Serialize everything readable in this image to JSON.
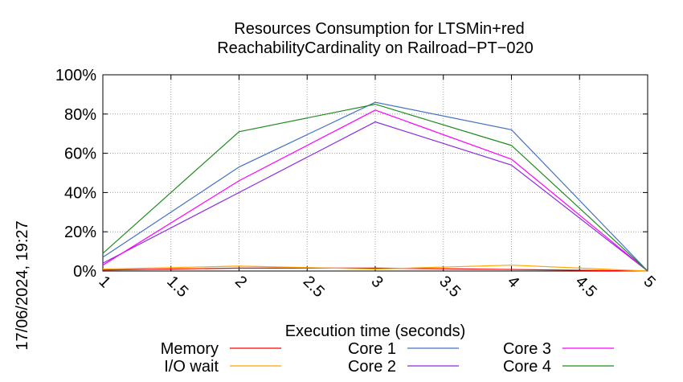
{
  "chart_data": {
    "type": "line",
    "title_lines": [
      "Resources Consumption for LTSMin+red",
      "ReachabilityCardinality on Railroad−PT−020"
    ],
    "xlabel": "Execution time (seconds)",
    "ylabel": "",
    "timestamp": "17/06/2024, 19:27",
    "xlim": [
      1,
      5
    ],
    "ylim": [
      0,
      100
    ],
    "x_ticks": [
      1,
      1.5,
      2,
      2.5,
      3,
      3.5,
      4,
      4.5,
      5
    ],
    "x_tick_labels": [
      "1",
      "1.5",
      "2",
      "2.5",
      "3",
      "3.5",
      "4",
      "4.5",
      "5"
    ],
    "y_ticks": [
      0,
      20,
      40,
      60,
      80,
      100
    ],
    "y_tick_labels": [
      "0%",
      "20%",
      "40%",
      "60%",
      "80%",
      "100%"
    ],
    "grid": true,
    "legend_position": "bottom",
    "x": [
      1,
      2,
      3,
      4,
      5
    ],
    "series": [
      {
        "name": "Memory",
        "color": "#ff0000",
        "values": [
          0.5,
          1.5,
          1.5,
          0.8,
          0
        ]
      },
      {
        "name": "I/O wait",
        "color": "#ffa500",
        "values": [
          1,
          2.5,
          1,
          3,
          0
        ]
      },
      {
        "name": "Core 1",
        "color": "#4472c4",
        "values": [
          7,
          53,
          86,
          72,
          0
        ]
      },
      {
        "name": "Core 2",
        "color": "#8b2be2",
        "values": [
          4,
          40,
          76,
          54,
          0
        ]
      },
      {
        "name": "Core 3",
        "color": "#ff00ff",
        "values": [
          3,
          46,
          82,
          57,
          0
        ]
      },
      {
        "name": "Core 4",
        "color": "#228b22",
        "values": [
          9,
          71,
          85,
          64,
          0
        ]
      }
    ]
  }
}
